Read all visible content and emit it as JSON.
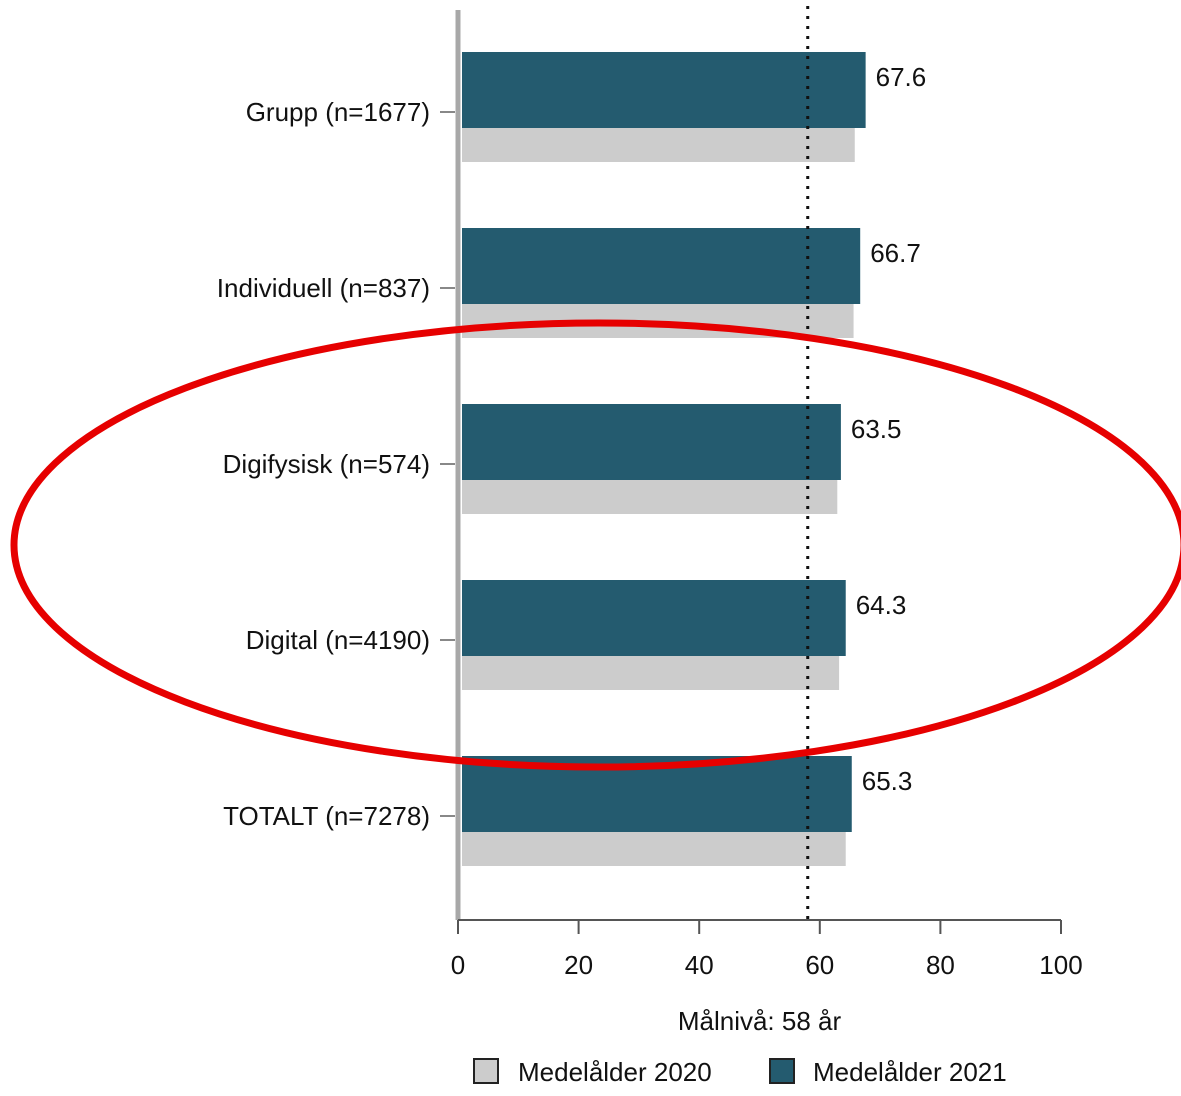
{
  "chart_data": {
    "type": "bar",
    "orientation": "horizontal",
    "categories": [
      "Grupp (n=1677)",
      "Individuell (n=837)",
      "Digifysisk (n=574)",
      "Digital (n=4190)",
      "TOTALT (n=7278)"
    ],
    "series": [
      {
        "name": "Medelålder 2020",
        "color": "#cccccc",
        "values": [
          65.8,
          65.6,
          62.9,
          63.2,
          64.3
        ]
      },
      {
        "name": "Medelålder 2021",
        "color": "#245b6f",
        "values": [
          67.6,
          66.7,
          63.5,
          64.3,
          65.3
        ]
      }
    ],
    "data_labels": [
      "67.6",
      "66.7",
      "63.5",
      "64.3",
      "65.3"
    ],
    "xlim": [
      0,
      100
    ],
    "xticks": [
      0,
      20,
      40,
      60,
      80,
      100
    ],
    "xlabel": "Målnivå: 58 år",
    "reference_line": {
      "value": 58,
      "style": "dotted"
    },
    "highlight": {
      "shape": "ellipse",
      "color": "#e60000",
      "categories": [
        "Digifysisk (n=574)",
        "Digital (n=4190)"
      ]
    },
    "legend": {
      "position": "bottom",
      "entries": [
        "Medelålder 2020",
        "Medelålder 2021"
      ]
    }
  }
}
